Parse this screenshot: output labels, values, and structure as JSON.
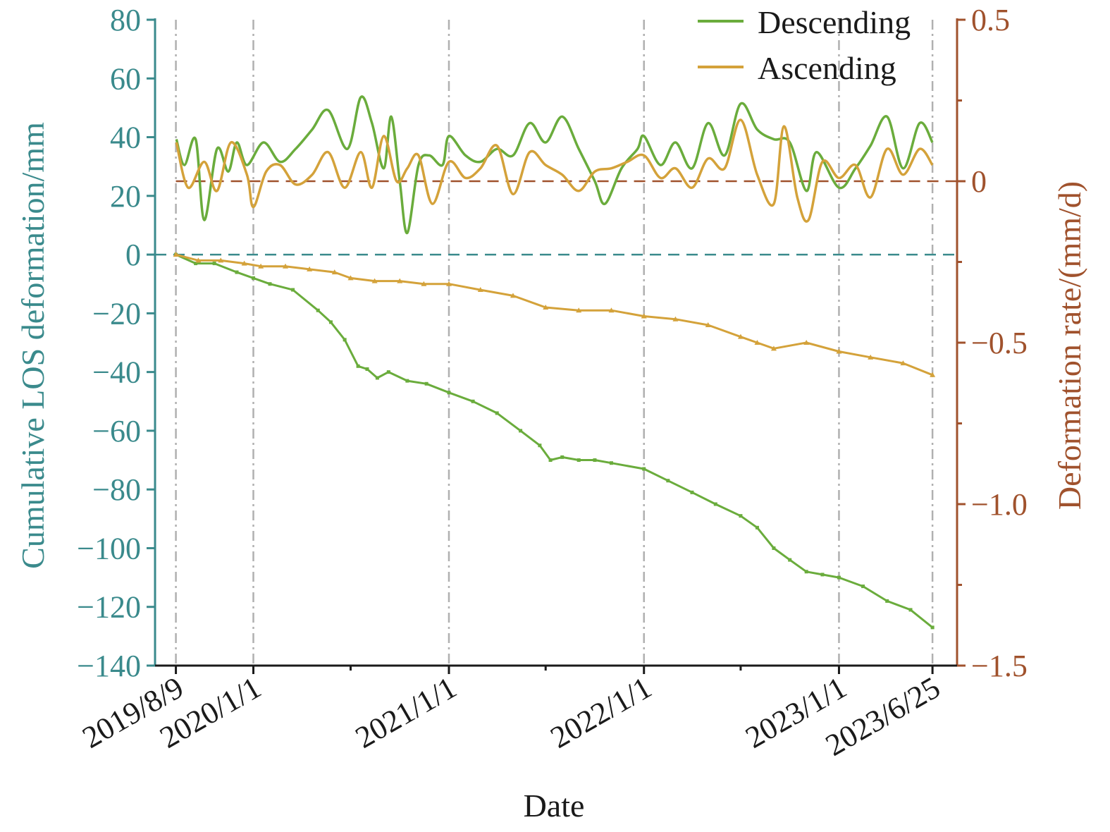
{
  "chart_data": {
    "type": "line",
    "xlabel": "Date",
    "ylabel_left": "Cumulative LOS deformation/mm",
    "ylabel_right": "Deformation rate/(mm/d)",
    "xlim": [
      "2019-07-01",
      "2023-08-10"
    ],
    "ylim_left": [
      -140,
      80
    ],
    "ylim_right": [
      -1.5,
      0.5
    ],
    "x_ticks": [
      {
        "date": "2019-08-09",
        "label": "2019/8/9"
      },
      {
        "date": "2020-01-01",
        "label": "2020/1/1"
      },
      {
        "date": "2021-01-01",
        "label": "2021/1/1"
      },
      {
        "date": "2022-01-01",
        "label": "2022/1/1"
      },
      {
        "date": "2023-01-01",
        "label": "2023/1/1"
      },
      {
        "date": "2023-06-25",
        "label": "2023/6/25"
      }
    ],
    "x_minor_ticks": [
      "2020-07-01",
      "2021-07-01",
      "2022-07-01"
    ],
    "y_left_ticks": [
      80,
      60,
      40,
      20,
      0,
      -20,
      -40,
      -60,
      -80,
      -100,
      -120,
      -140
    ],
    "y_left_tick_labels": [
      "80",
      "60",
      "40",
      "20",
      "0",
      "−20",
      "−40",
      "−60",
      "−80",
      "−100",
      "−120",
      "−140"
    ],
    "y_right_ticks": [
      0.5,
      0,
      -0.5,
      -1.0,
      -1.5
    ],
    "y_right_tick_labels": [
      "0.5",
      "0",
      "−0.5",
      "−1.0",
      "−1.5"
    ],
    "y_right_minor_ticks": [
      0.25,
      -0.25,
      -0.75,
      -1.25
    ],
    "reference_lines": [
      {
        "axis": "left",
        "value": 0,
        "style": "dashed",
        "color": "#3a8a8c"
      },
      {
        "axis": "right",
        "value": 0,
        "style": "dashed",
        "color": "#a0522d"
      }
    ],
    "legend": {
      "position": "top-right",
      "entries": [
        "Descending",
        "Ascending"
      ]
    },
    "colors": {
      "descending": "#6aac3c",
      "ascending": "#d4a23a",
      "left_axis": "#3a8a8c",
      "right_axis": "#a0522d",
      "gridline": "#b0b0b0"
    },
    "series": [
      {
        "name": "Descending",
        "axis": "left",
        "kind": "cumulative",
        "points": [
          [
            "2019-08-09",
            0
          ],
          [
            "2019-09-15",
            -3
          ],
          [
            "2019-10-20",
            -3
          ],
          [
            "2019-12-01",
            -6
          ],
          [
            "2020-01-01",
            -8
          ],
          [
            "2020-02-01",
            -10
          ],
          [
            "2020-03-15",
            -12
          ],
          [
            "2020-05-01",
            -19
          ],
          [
            "2020-05-25",
            -23
          ],
          [
            "2020-06-20",
            -29
          ],
          [
            "2020-07-15",
            -38
          ],
          [
            "2020-08-01",
            -39
          ],
          [
            "2020-08-20",
            -42
          ],
          [
            "2020-09-10",
            -40
          ],
          [
            "2020-10-15",
            -43
          ],
          [
            "2020-11-20",
            -44
          ],
          [
            "2021-01-01",
            -47
          ],
          [
            "2021-02-15",
            -50
          ],
          [
            "2021-04-01",
            -54
          ],
          [
            "2021-05-15",
            -60
          ],
          [
            "2021-06-20",
            -65
          ],
          [
            "2021-07-10",
            -70
          ],
          [
            "2021-08-01",
            -69
          ],
          [
            "2021-09-01",
            -70
          ],
          [
            "2021-10-01",
            -70
          ],
          [
            "2021-11-01",
            -71
          ],
          [
            "2022-01-01",
            -73
          ],
          [
            "2022-02-15",
            -77
          ],
          [
            "2022-04-01",
            -81
          ],
          [
            "2022-05-15",
            -85
          ],
          [
            "2022-07-01",
            -89
          ],
          [
            "2022-08-01",
            -93
          ],
          [
            "2022-09-01",
            -100
          ],
          [
            "2022-10-01",
            -104
          ],
          [
            "2022-11-01",
            -108
          ],
          [
            "2022-12-01",
            -109
          ],
          [
            "2023-01-01",
            -110
          ],
          [
            "2023-02-15",
            -113
          ],
          [
            "2023-04-01",
            -118
          ],
          [
            "2023-05-15",
            -121
          ],
          [
            "2023-06-25",
            -127
          ]
        ]
      },
      {
        "name": "Ascending",
        "axis": "left",
        "kind": "cumulative",
        "points": [
          [
            "2019-08-09",
            0
          ],
          [
            "2019-09-20",
            -2
          ],
          [
            "2019-11-01",
            -2
          ],
          [
            "2019-12-15",
            -3
          ],
          [
            "2020-01-15",
            -4
          ],
          [
            "2020-03-01",
            -4
          ],
          [
            "2020-04-15",
            -5
          ],
          [
            "2020-06-01",
            -6
          ],
          [
            "2020-07-01",
            -8
          ],
          [
            "2020-08-15",
            -9
          ],
          [
            "2020-10-01",
            -9
          ],
          [
            "2020-11-15",
            -10
          ],
          [
            "2021-01-01",
            -10
          ],
          [
            "2021-03-01",
            -12
          ],
          [
            "2021-05-01",
            -14
          ],
          [
            "2021-07-01",
            -18
          ],
          [
            "2021-09-01",
            -19
          ],
          [
            "2021-11-01",
            -19
          ],
          [
            "2022-01-01",
            -21
          ],
          [
            "2022-03-01",
            -22
          ],
          [
            "2022-05-01",
            -24
          ],
          [
            "2022-07-01",
            -28
          ],
          [
            "2022-08-01",
            -30
          ],
          [
            "2022-09-01",
            -32
          ],
          [
            "2022-11-01",
            -30
          ],
          [
            "2023-01-01",
            -33
          ],
          [
            "2023-03-01",
            -35
          ],
          [
            "2023-05-01",
            -37
          ],
          [
            "2023-06-25",
            -41
          ]
        ]
      },
      {
        "name": "Descending",
        "axis": "right",
        "kind": "rate",
        "points": [
          [
            "2019-08-10",
            0.13
          ],
          [
            "2019-08-25",
            0.05
          ],
          [
            "2019-09-15",
            0.13
          ],
          [
            "2019-10-01",
            -0.12
          ],
          [
            "2019-10-25",
            0.1
          ],
          [
            "2019-11-15",
            0.03
          ],
          [
            "2019-12-01",
            0.12
          ],
          [
            "2019-12-20",
            0.05
          ],
          [
            "2020-01-20",
            0.12
          ],
          [
            "2020-02-20",
            0.06
          ],
          [
            "2020-03-20",
            0.1
          ],
          [
            "2020-04-20",
            0.16
          ],
          [
            "2020-05-20",
            0.22
          ],
          [
            "2020-06-25",
            0.1
          ],
          [
            "2020-07-20",
            0.26
          ],
          [
            "2020-08-10",
            0.18
          ],
          [
            "2020-09-01",
            0.04
          ],
          [
            "2020-09-15",
            0.2
          ],
          [
            "2020-10-01",
            -0.0
          ],
          [
            "2020-10-15",
            -0.16
          ],
          [
            "2020-11-05",
            0.05
          ],
          [
            "2020-11-25",
            0.08
          ],
          [
            "2020-12-20",
            0.05
          ],
          [
            "2021-01-01",
            0.14
          ],
          [
            "2021-02-01",
            0.08
          ],
          [
            "2021-03-01",
            0.06
          ],
          [
            "2021-04-01",
            0.1
          ],
          [
            "2021-05-01",
            0.08
          ],
          [
            "2021-06-01",
            0.18
          ],
          [
            "2021-07-01",
            0.12
          ],
          [
            "2021-08-01",
            0.2
          ],
          [
            "2021-09-01",
            0.1
          ],
          [
            "2021-10-01",
            0.0
          ],
          [
            "2021-10-20",
            -0.07
          ],
          [
            "2021-11-20",
            0.04
          ],
          [
            "2021-12-20",
            0.1
          ],
          [
            "2022-01-01",
            0.14
          ],
          [
            "2022-02-01",
            0.05
          ],
          [
            "2022-03-01",
            0.12
          ],
          [
            "2022-04-01",
            0.04
          ],
          [
            "2022-05-01",
            0.18
          ],
          [
            "2022-06-01",
            0.08
          ],
          [
            "2022-07-01",
            0.24
          ],
          [
            "2022-08-01",
            0.16
          ],
          [
            "2022-09-01",
            0.13
          ],
          [
            "2022-10-01",
            0.12
          ],
          [
            "2022-11-01",
            -0.03
          ],
          [
            "2022-11-20",
            0.09
          ],
          [
            "2023-01-01",
            -0.02
          ],
          [
            "2023-02-01",
            0.04
          ],
          [
            "2023-03-01",
            0.11
          ],
          [
            "2023-04-01",
            0.2
          ],
          [
            "2023-05-01",
            0.04
          ],
          [
            "2023-06-01",
            0.18
          ],
          [
            "2023-06-25",
            0.12
          ]
        ]
      },
      {
        "name": "Ascending",
        "axis": "right",
        "kind": "rate",
        "points": [
          [
            "2019-08-10",
            0.12
          ],
          [
            "2019-09-01",
            -0.02
          ],
          [
            "2019-10-01",
            0.06
          ],
          [
            "2019-10-25",
            -0.03
          ],
          [
            "2019-11-20",
            0.12
          ],
          [
            "2019-12-20",
            0.02
          ],
          [
            "2020-01-01",
            -0.08
          ],
          [
            "2020-01-25",
            0.03
          ],
          [
            "2020-02-20",
            0.05
          ],
          [
            "2020-03-20",
            -0.01
          ],
          [
            "2020-04-20",
            0.02
          ],
          [
            "2020-05-20",
            0.09
          ],
          [
            "2020-06-20",
            -0.02
          ],
          [
            "2020-07-20",
            0.09
          ],
          [
            "2020-08-10",
            -0.02
          ],
          [
            "2020-09-01",
            0.14
          ],
          [
            "2020-09-25",
            0.0
          ],
          [
            "2020-10-15",
            0.04
          ],
          [
            "2020-11-05",
            0.08
          ],
          [
            "2020-12-01",
            -0.07
          ],
          [
            "2021-01-01",
            0.06
          ],
          [
            "2021-02-01",
            0.01
          ],
          [
            "2021-03-01",
            0.04
          ],
          [
            "2021-04-01",
            0.11
          ],
          [
            "2021-05-01",
            -0.04
          ],
          [
            "2021-06-01",
            0.09
          ],
          [
            "2021-07-01",
            0.05
          ],
          [
            "2021-08-01",
            0.02
          ],
          [
            "2021-09-01",
            -0.03
          ],
          [
            "2021-10-01",
            0.03
          ],
          [
            "2021-11-01",
            0.04
          ],
          [
            "2021-12-01",
            0.06
          ],
          [
            "2022-01-01",
            0.08
          ],
          [
            "2022-02-01",
            0.01
          ],
          [
            "2022-03-01",
            0.04
          ],
          [
            "2022-04-01",
            -0.02
          ],
          [
            "2022-05-01",
            0.07
          ],
          [
            "2022-06-01",
            0.04
          ],
          [
            "2022-07-01",
            0.19
          ],
          [
            "2022-08-01",
            0.02
          ],
          [
            "2022-09-01",
            -0.07
          ],
          [
            "2022-09-20",
            0.17
          ],
          [
            "2022-10-15",
            -0.05
          ],
          [
            "2022-11-05",
            -0.12
          ],
          [
            "2022-12-01",
            0.06
          ],
          [
            "2023-01-01",
            0.01
          ],
          [
            "2023-02-01",
            0.05
          ],
          [
            "2023-03-01",
            -0.05
          ],
          [
            "2023-04-01",
            0.1
          ],
          [
            "2023-05-01",
            0.02
          ],
          [
            "2023-06-01",
            0.1
          ],
          [
            "2023-06-25",
            0.05
          ]
        ]
      }
    ]
  }
}
